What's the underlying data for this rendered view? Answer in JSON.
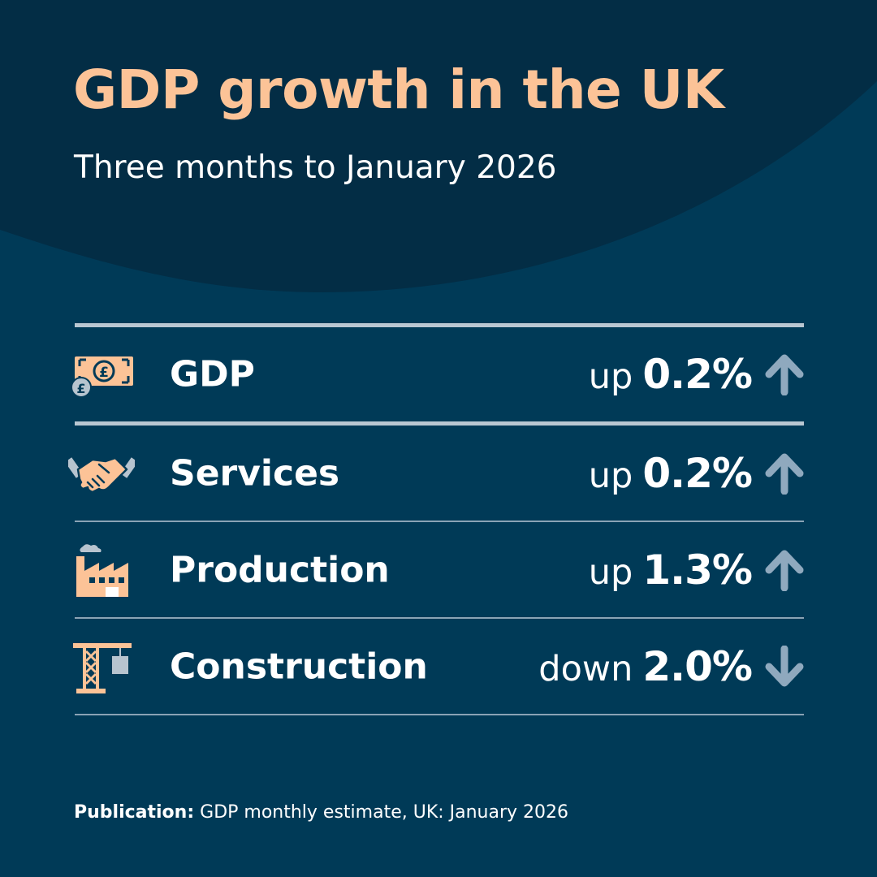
{
  "title": "GDP growth in the UK",
  "subtitle": "Three months to January 2026",
  "rows": [
    {
      "label": "GDP",
      "direction": "up",
      "value": "0.2%",
      "icon": "banknote-pound-icon",
      "arrow": "arrow-up-icon"
    },
    {
      "label": "Services",
      "direction": "up",
      "value": "0.2%",
      "icon": "handshake-icon",
      "arrow": "arrow-up-icon"
    },
    {
      "label": "Production",
      "direction": "up",
      "value": "1.3%",
      "icon": "factory-icon",
      "arrow": "arrow-up-icon"
    },
    {
      "label": "Construction",
      "direction": "down",
      "value": "2.0%",
      "icon": "crane-icon",
      "arrow": "arrow-down-icon"
    }
  ],
  "footer": {
    "label": "Publication:",
    "text": "GDP monthly estimate, UK: January 2026"
  },
  "colors": {
    "background": "#003a57",
    "arc": "#032d45",
    "accent": "#fcc397",
    "arrow": "#8fa9be",
    "text": "#ffffff"
  }
}
